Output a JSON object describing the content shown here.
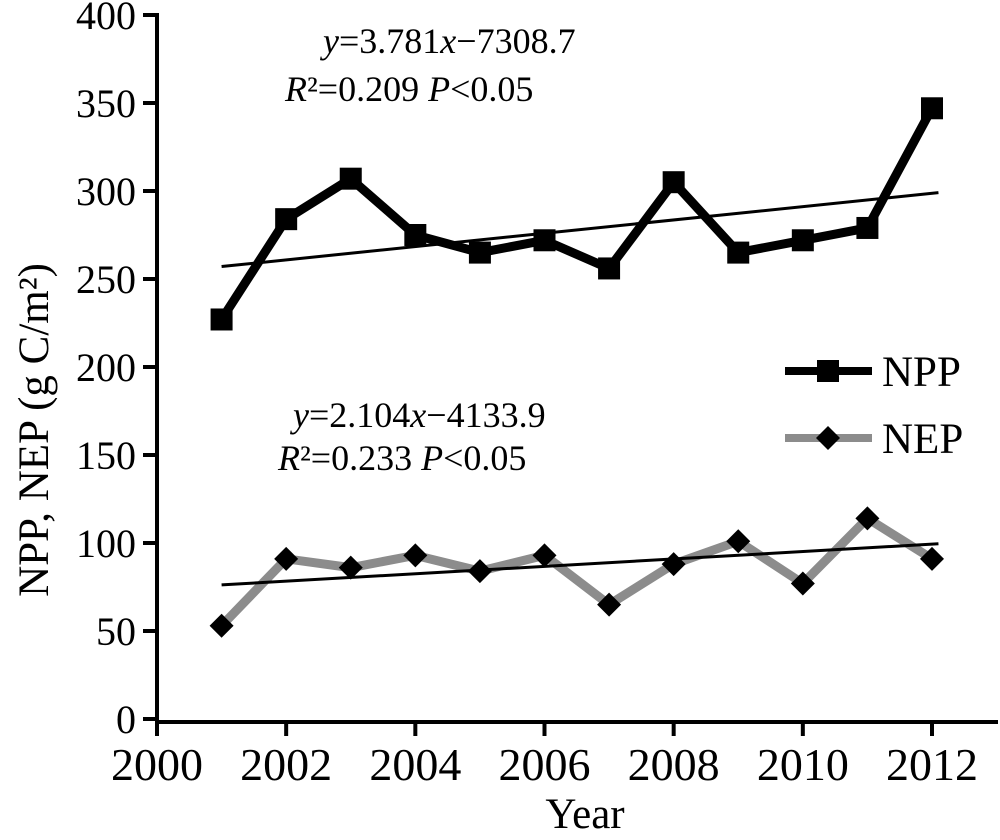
{
  "figure_title": "NPP and NEP interannual trend chart",
  "chart_data": {
    "type": "line",
    "title": "",
    "xlabel": "Year",
    "ylabel": "NPP,  NEP (g C/m²)",
    "xlim": [
      2000,
      2013
    ],
    "ylim": [
      0,
      400
    ],
    "x_ticks": [
      2000,
      2002,
      2004,
      2006,
      2008,
      2010,
      2012
    ],
    "y_ticks": [
      0,
      50,
      100,
      150,
      200,
      250,
      300,
      350,
      400
    ],
    "grid": false,
    "x": [
      2001,
      2002,
      2003,
      2004,
      2005,
      2006,
      2007,
      2008,
      2009,
      2010,
      2011,
      2012
    ],
    "series": [
      {
        "name": "NPP",
        "line_color": "#000000",
        "marker": "square",
        "marker_color": "#000000",
        "values": [
          227,
          284,
          307,
          275,
          265,
          272,
          256,
          305,
          265,
          272,
          279,
          347
        ]
      },
      {
        "name": "NEP",
        "line_color": "#8c8c8c",
        "marker": "diamond",
        "marker_color": "#000000",
        "values": [
          53,
          91,
          86,
          93,
          84,
          93,
          65,
          88,
          101,
          77,
          114,
          91
        ]
      }
    ],
    "trendlines": [
      {
        "series": "NPP",
        "slope": 3.781,
        "intercept": -7308.7,
        "x_start": 2001,
        "x_end": 2012.1,
        "color": "#000000"
      },
      {
        "series": "NEP",
        "slope": 2.104,
        "intercept": -4133.9,
        "x_start": 2001,
        "x_end": 2012.1,
        "color": "#000000"
      }
    ],
    "annotations": [
      {
        "name": "npp-equation",
        "lines": [
          {
            "segments": [
              {
                "t": "y",
                "i": true
              },
              {
                "t": "=3.781"
              },
              {
                "t": "x",
                "i": true
              },
              {
                "t": "−7308.7"
              }
            ]
          },
          {
            "segments": [
              {
                "t": "R",
                "i": true
              },
              {
                "t": "²=0.209  "
              },
              {
                "t": "P",
                "i": true
              },
              {
                "t": "<0.05"
              }
            ]
          }
        ]
      },
      {
        "name": "nep-equation",
        "lines": [
          {
            "segments": [
              {
                "t": "y",
                "i": true
              },
              {
                "t": "=2.104"
              },
              {
                "t": "x",
                "i": true
              },
              {
                "t": "−4133.9"
              }
            ]
          },
          {
            "segments": [
              {
                "t": "R",
                "i": true
              },
              {
                "t": "²=0.233 "
              },
              {
                "t": "P",
                "i": true
              },
              {
                "t": "<0.05"
              }
            ]
          }
        ]
      }
    ],
    "legend": {
      "position": "right-middle",
      "items": [
        {
          "label": "NPP",
          "marker": "square",
          "line_color": "#000000",
          "marker_color": "#000000"
        },
        {
          "label": "NEP",
          "marker": "diamond",
          "line_color": "#8c8c8c",
          "marker_color": "#000000"
        }
      ]
    },
    "colors": {
      "axis": "#000000",
      "background": "#ffffff",
      "nep_line_gray": "#8c8c8c"
    }
  }
}
